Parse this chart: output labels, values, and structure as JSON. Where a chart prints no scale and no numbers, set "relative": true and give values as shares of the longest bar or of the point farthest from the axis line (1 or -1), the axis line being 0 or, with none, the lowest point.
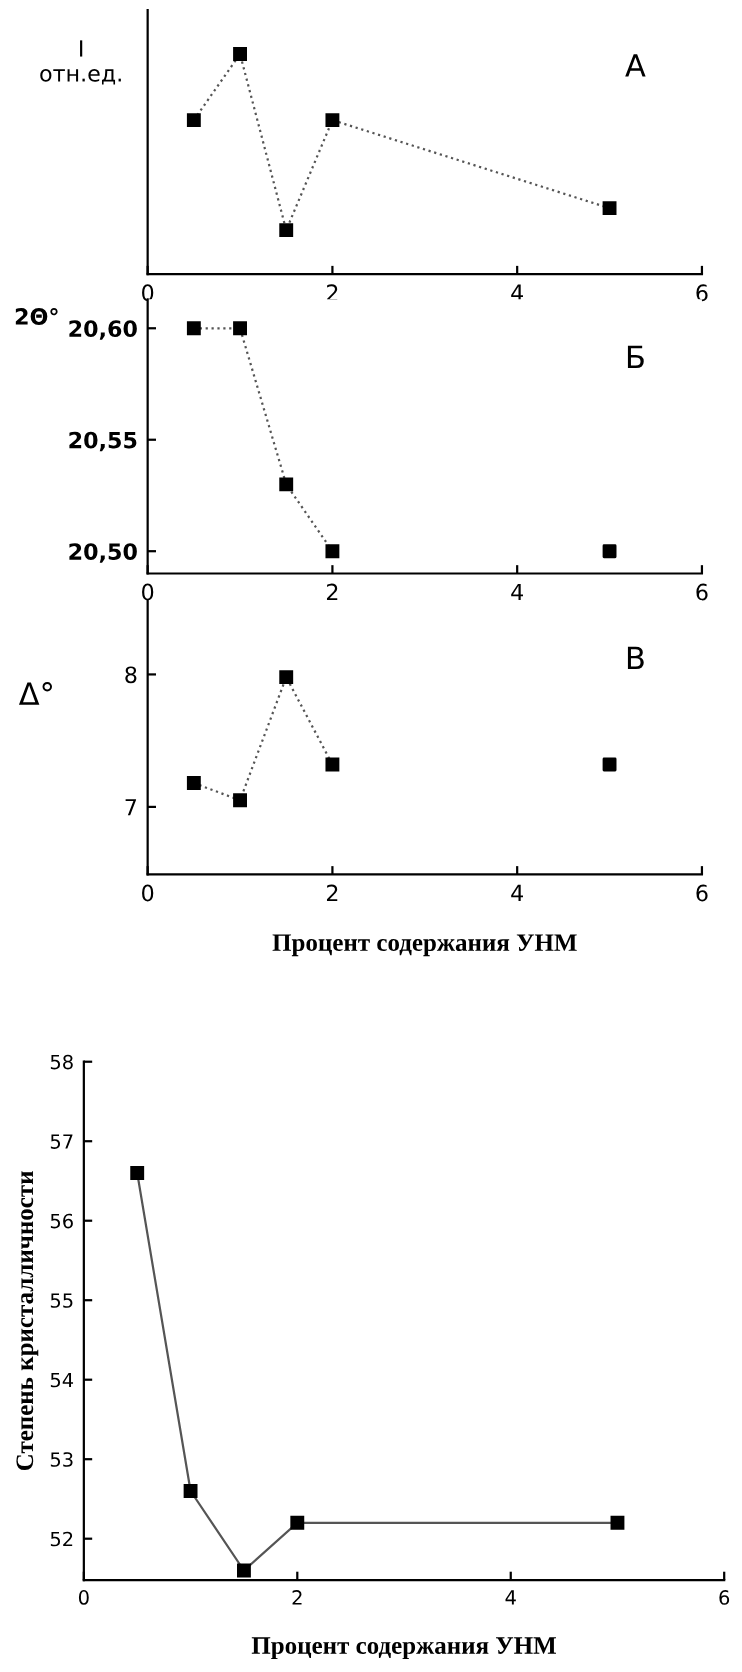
{
  "chart_data": [
    {
      "type": "line",
      "ylabel": "I\nотн.ед.",
      "annotations": [
        "А"
      ],
      "relative": true,
      "tick_labels": "x",
      "xlim": [
        0,
        6
      ],
      "xticks": [
        0,
        2,
        4,
        6
      ],
      "marker": "square",
      "line_style": "dotted",
      "grid": false,
      "legend": false,
      "series": [
        {
          "color": "#000000",
          "x": [
            0.5,
            1,
            1.5,
            2,
            5
          ],
          "values": [
            0.7,
            1,
            0.2,
            0.7,
            0.3
          ]
        }
      ]
    },
    {
      "type": "line",
      "ylabel": "2Θ°",
      "annotations": [
        "Б"
      ],
      "xlim": [
        0,
        6
      ],
      "xticks": [
        0,
        2,
        4,
        6
      ],
      "ylim": [
        20.49,
        20.613
      ],
      "yticks": [
        {
          "value": 20.5,
          "label": "20,50"
        },
        {
          "value": 20.55,
          "label": "20,55"
        },
        {
          "value": 20.6,
          "label": "20,60"
        }
      ],
      "marker": "square",
      "line_style": "dotted",
      "grid": false,
      "legend": false,
      "series": [
        {
          "color": "#000000",
          "x": [
            0.5,
            1,
            1.5,
            2
          ],
          "values": [
            20.6,
            20.6,
            20.53,
            20.5
          ]
        },
        {
          "type": "scatter",
          "color": "#000000",
          "x": [
            5
          ],
          "values": [
            20.5
          ]
        }
      ]
    },
    {
      "type": "line",
      "ylabel": "Δ°",
      "xlabel": "Процент содержания УНМ",
      "annotations": [
        "В"
      ],
      "xlim": [
        0,
        6
      ],
      "xticks": [
        0,
        2,
        4,
        6
      ],
      "ylim": [
        6.49,
        8.56
      ],
      "yticks": [
        7,
        8
      ],
      "marker": "square",
      "line_style": "dotted",
      "grid": false,
      "legend": false,
      "series": [
        {
          "color": "#000000",
          "x": [
            0.5,
            1,
            1.5,
            2
          ],
          "values": [
            7.18,
            7.05,
            7.98,
            7.32
          ]
        },
        {
          "type": "scatter",
          "color": "#000000",
          "x": [
            5
          ],
          "values": [
            7.32
          ]
        }
      ]
    },
    {
      "type": "line",
      "ylabel": "Степень кристалличности",
      "xlabel": "Процент содержания УНМ",
      "xlim": [
        0,
        6
      ],
      "xticks": [
        0,
        2,
        4,
        6
      ],
      "ylim": [
        51.48,
        58
      ],
      "yticks": [
        52,
        53,
        54,
        55,
        56,
        57,
        58
      ],
      "marker": "square",
      "line_style": "solid",
      "grid": false,
      "legend": false,
      "series": [
        {
          "color": "#000000",
          "x": [
            0.5,
            1,
            1.5,
            2,
            5
          ],
          "values": [
            56.6,
            52.6,
            51.6,
            52.2,
            52.2
          ]
        }
      ]
    }
  ]
}
